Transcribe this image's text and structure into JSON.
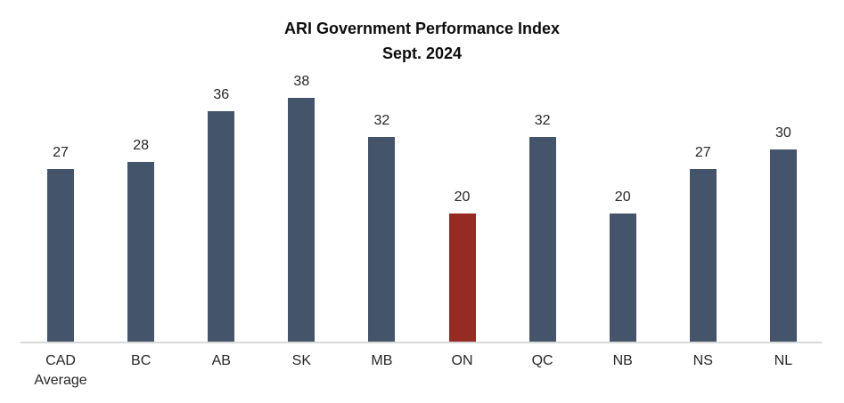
{
  "title": {
    "line1": "ARI Government Performance Index",
    "line2": "Sept. 2024"
  },
  "chart_data": {
    "type": "bar",
    "title": "ARI Government Performance Index Sept. 2024",
    "categories": [
      "CAD\nAverage",
      "BC",
      "AB",
      "SK",
      "MB",
      "ON",
      "QC",
      "NB",
      "NS",
      "NL"
    ],
    "values": [
      27,
      28,
      36,
      38,
      32,
      20,
      32,
      20,
      27,
      30
    ],
    "xlabel": "",
    "ylabel": "",
    "ylim": [
      0,
      40
    ],
    "grid": false,
    "legend": false,
    "data_labels_shown": true,
    "colors": {
      "bar_default": "#44546A",
      "bar_highlight": "#962B23",
      "axis_line": "#D9D9D9",
      "label_text": "#262626",
      "title_text": "#0D0D0D"
    },
    "highlight_category": "ON"
  }
}
